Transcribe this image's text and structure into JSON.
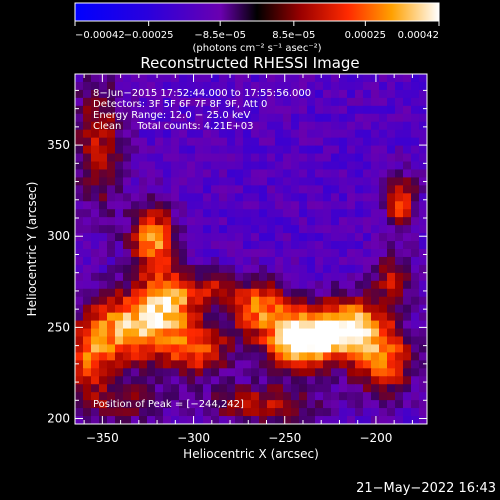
{
  "chart_data": {
    "type": "heatmap",
    "title": "Reconstructed RHESSI Image",
    "xlabel": "Heliocentric X (arcsec)",
    "ylabel": "Heliocentric Y (arcsec)",
    "xlim": [
      -365,
      -172
    ],
    "ylim": [
      197,
      389
    ],
    "x_ticks": [
      -350,
      -300,
      -250,
      -200
    ],
    "y_ticks": [
      200,
      250,
      300,
      350
    ],
    "x_tick_labels": [
      "−350",
      "−300",
      "−250",
      "−200"
    ],
    "y_tick_labels": [
      "200",
      "250",
      "300",
      "350"
    ],
    "colorbar": {
      "min": -0.00042,
      "max": 0.00042,
      "ticks": [
        -0.00042,
        -0.00025,
        -8.5e-05,
        8.5e-05,
        0.00025,
        0.00042
      ],
      "tick_labels": [
        "−0.00042",
        "−0.00025",
        "−8.5e−05",
        "8.5e−05",
        "0.00025",
        "0.00042"
      ],
      "units": "(photons cm⁻² s⁻¹ asec⁻²)"
    },
    "annotations": [
      "8−Jun−2015 17:52:44.000 to 17:55:56.000",
      "Detectors: 3F 5F 6F 7F 8F 9F, Att 0",
      "Energy Range: 12.0 − 25.0 keV",
      "Clean     Total counts: 4.21E+03"
    ],
    "peak_label": "Position of Peak = [−244,242]",
    "peak": [
      -244,
      242
    ],
    "sources": [
      {
        "x": -242,
        "y": 243,
        "amp": 1.0,
        "sx": 14,
        "sy": 11
      },
      {
        "x": -215,
        "y": 250,
        "amp": 0.8,
        "sx": 14,
        "sy": 12
      },
      {
        "x": -195,
        "y": 232,
        "amp": 0.6,
        "sx": 12,
        "sy": 14
      },
      {
        "x": -265,
        "y": 262,
        "amp": 0.65,
        "sx": 12,
        "sy": 10
      },
      {
        "x": -335,
        "y": 250,
        "amp": 0.8,
        "sx": 17,
        "sy": 14
      },
      {
        "x": -322,
        "y": 298,
        "amp": 0.75,
        "sx": 9,
        "sy": 13
      },
      {
        "x": -312,
        "y": 265,
        "amp": 0.65,
        "sx": 11,
        "sy": 11
      },
      {
        "x": -298,
        "y": 238,
        "amp": 0.6,
        "sx": 14,
        "sy": 10
      },
      {
        "x": -358,
        "y": 232,
        "amp": 0.5,
        "sx": 9,
        "sy": 14
      },
      {
        "x": -186,
        "y": 318,
        "amp": 0.6,
        "sx": 6,
        "sy": 11
      },
      {
        "x": -190,
        "y": 277,
        "amp": 0.45,
        "sx": 8,
        "sy": 10
      },
      {
        "x": -352,
        "y": 350,
        "amp": 0.45,
        "sx": 10,
        "sy": 28
      },
      {
        "x": -290,
        "y": 272,
        "amp": 0.35,
        "sx": 8,
        "sy": 7
      },
      {
        "x": -262,
        "y": 208,
        "amp": 0.45,
        "sx": 22,
        "sy": 8
      },
      {
        "x": -340,
        "y": 208,
        "amp": 0.35,
        "sx": 18,
        "sy": 8
      }
    ]
  },
  "timestamp": "21−May−2022 16:43"
}
